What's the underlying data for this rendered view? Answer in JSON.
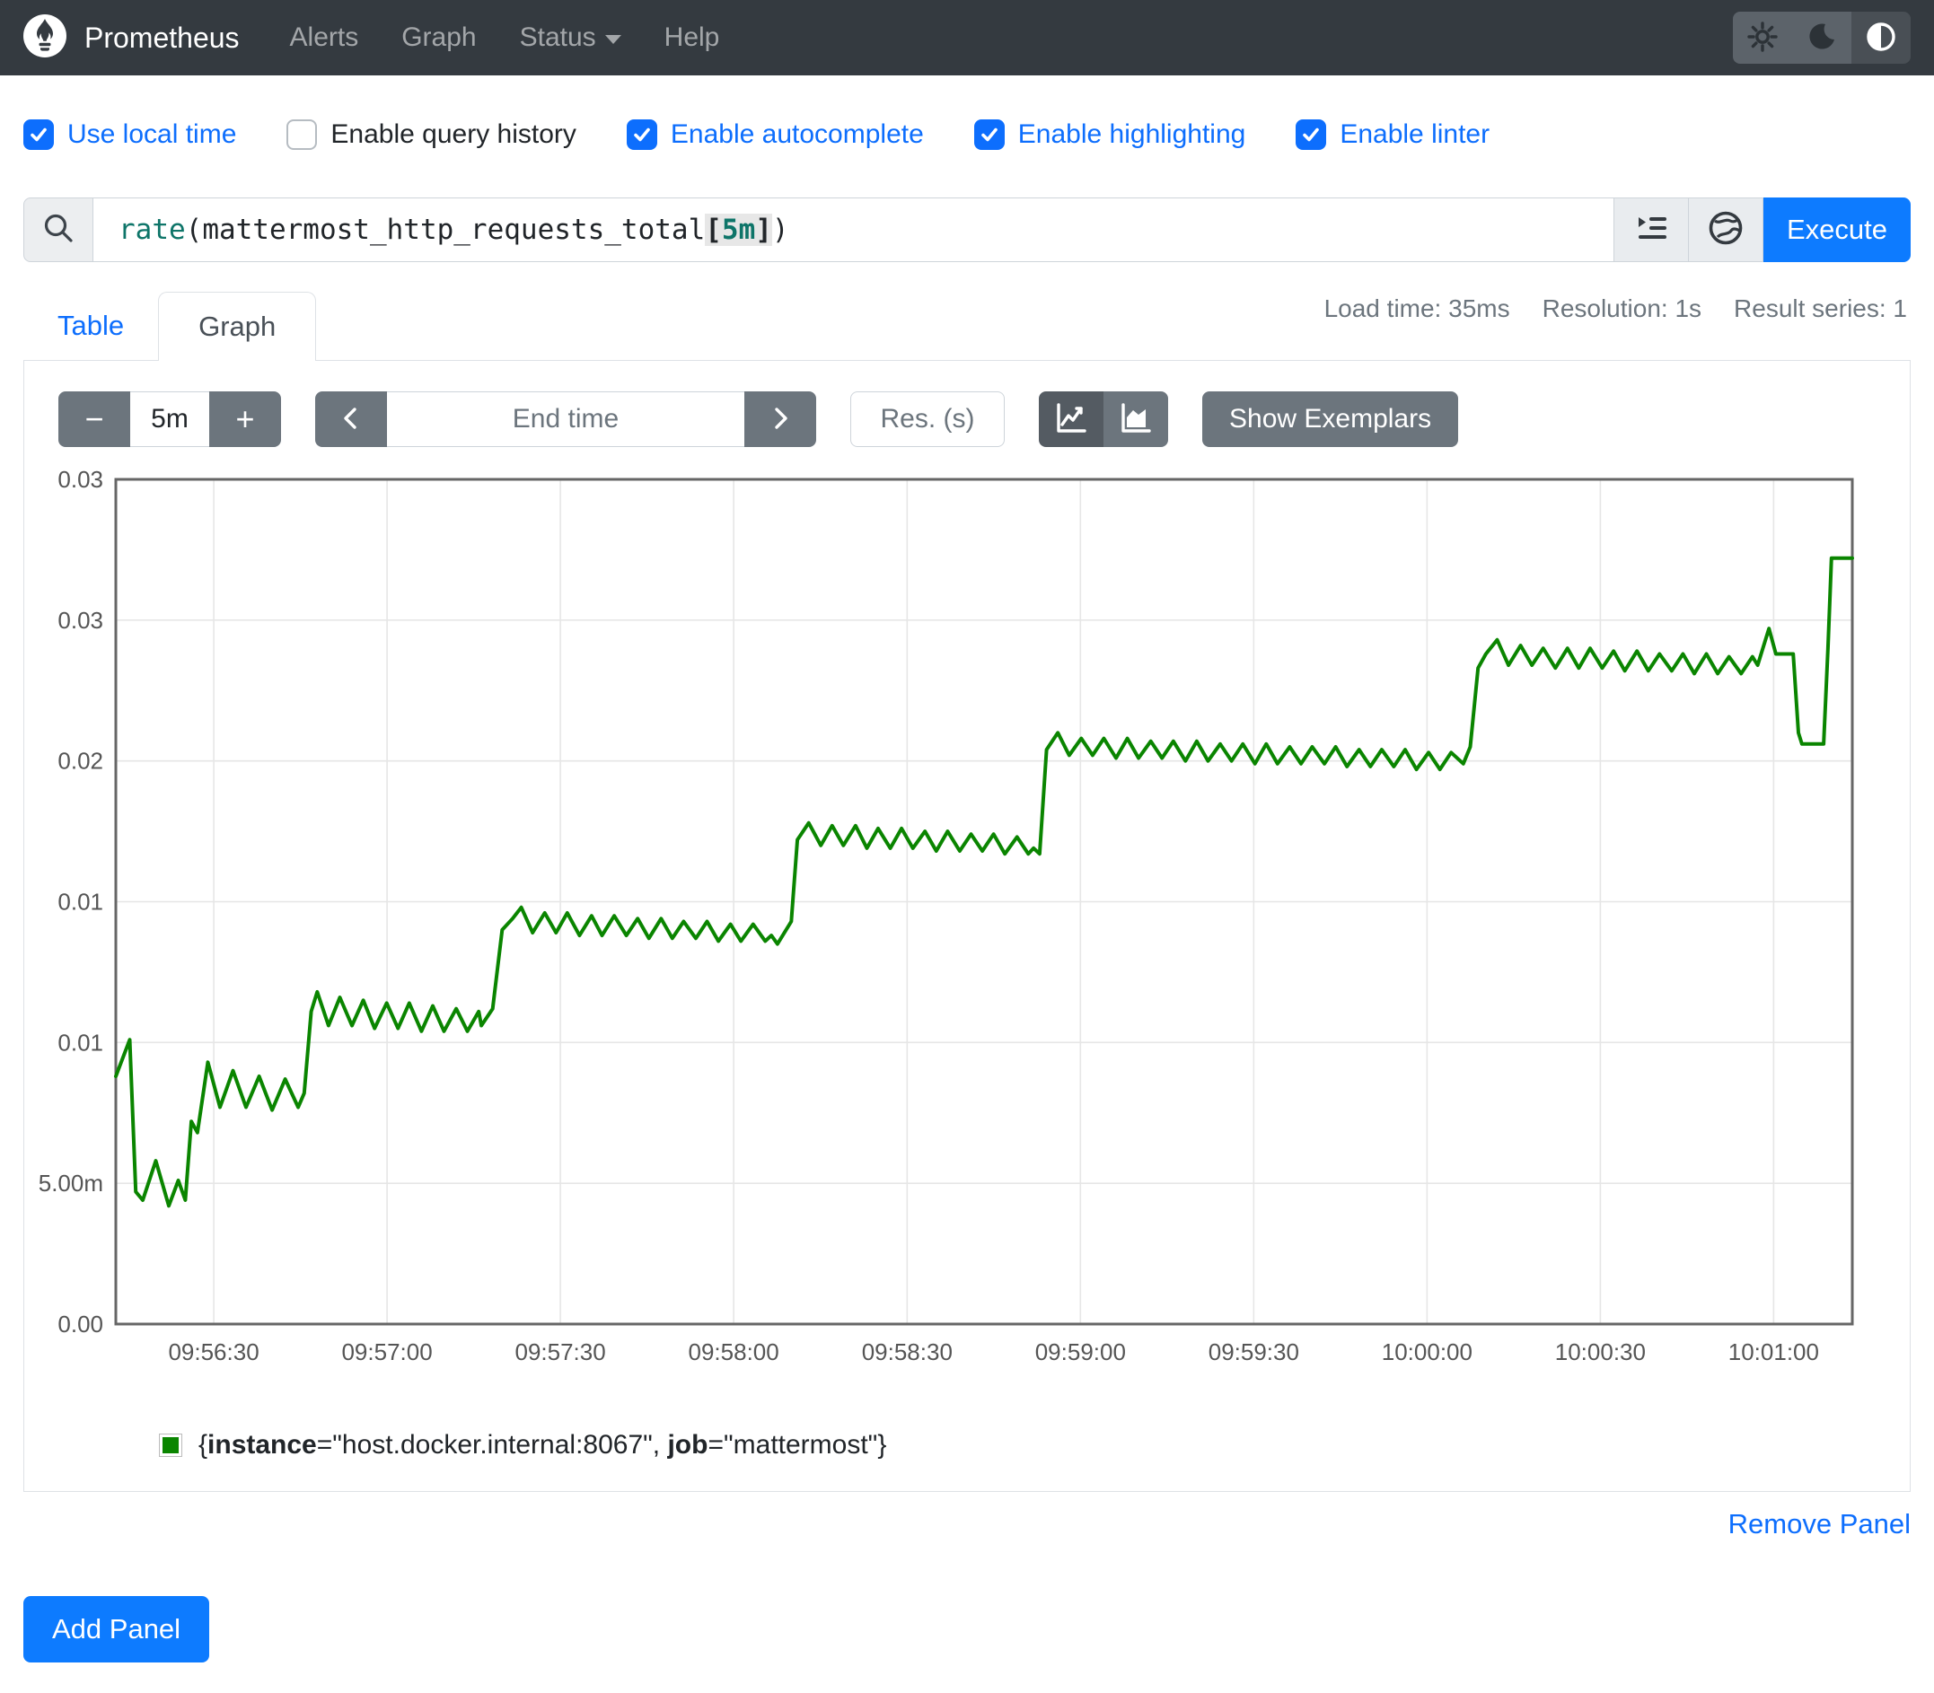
{
  "navbar": {
    "brand": "Prometheus",
    "links": [
      "Alerts",
      "Graph",
      "Status",
      "Help"
    ],
    "theme_icons": [
      "sun-icon",
      "moon-icon",
      "contrast-icon"
    ]
  },
  "options": [
    {
      "label": "Use local time",
      "checked": true
    },
    {
      "label": "Enable query history",
      "checked": false
    },
    {
      "label": "Enable autocomplete",
      "checked": true
    },
    {
      "label": "Enable highlighting",
      "checked": true
    },
    {
      "label": "Enable linter",
      "checked": true
    }
  ],
  "query_bar": {
    "expression_parts": [
      {
        "text": "rate",
        "color": "#0e7569"
      },
      {
        "text": "(mattermost_http_requests_total",
        "color": "#212529"
      },
      {
        "text": "[",
        "bg": true,
        "color": "#212529"
      },
      {
        "text": "5m",
        "bg": true,
        "color": "#0e7569"
      },
      {
        "text": "]",
        "bg": true,
        "color": "#212529"
      },
      {
        "text": ")",
        "color": "#212529"
      }
    ],
    "execute_label": "Execute"
  },
  "tabs": {
    "table": "Table",
    "graph": "Graph"
  },
  "stats": {
    "load_time": "Load time: 35ms",
    "resolution": "Resolution: 1s",
    "result_series": "Result series: 1"
  },
  "controls": {
    "minus": "−",
    "range_value": "5m",
    "plus": "+",
    "end_time_placeholder": "End time",
    "res_placeholder": "Res. (s)",
    "show_exemplars": "Show Exemplars"
  },
  "chart_data": {
    "type": "line",
    "ylim": [
      0,
      0.03
    ],
    "grid": true,
    "legend_position": "bottom",
    "y_ticks": [
      {
        "v": 0.0,
        "label": "0.00"
      },
      {
        "v": 0.005,
        "label": "5.00m"
      },
      {
        "v": 0.01,
        "label": "0.01"
      },
      {
        "v": 0.015,
        "label": "0.01"
      },
      {
        "v": 0.02,
        "label": "0.02"
      },
      {
        "v": 0.025,
        "label": "0.03"
      },
      {
        "v": 0.03,
        "label": "0.03"
      }
    ],
    "x_ticks": [
      {
        "f": 0.0564,
        "label": "09:56:30"
      },
      {
        "f": 0.1562,
        "label": "09:57:00"
      },
      {
        "f": 0.256,
        "label": "09:57:30"
      },
      {
        "f": 0.3558,
        "label": "09:58:00"
      },
      {
        "f": 0.4557,
        "label": "09:58:30"
      },
      {
        "f": 0.5555,
        "label": "09:59:00"
      },
      {
        "f": 0.6553,
        "label": "09:59:30"
      },
      {
        "f": 0.7551,
        "label": "10:00:00"
      },
      {
        "f": 0.8549,
        "label": "10:00:30"
      },
      {
        "f": 0.9547,
        "label": "10:01:00"
      }
    ],
    "series": [
      {
        "name": "{instance=\"host.docker.internal:8067\", job=\"mattermost\"}",
        "color": "#0a8500",
        "points": [
          [
            0.0,
            0.0088
          ],
          [
            0.008,
            0.0101
          ],
          [
            0.0115,
            0.0047
          ],
          [
            0.0155,
            0.0044
          ],
          [
            0.023,
            0.0058
          ],
          [
            0.0305,
            0.0042
          ],
          [
            0.036,
            0.0051
          ],
          [
            0.04,
            0.0044
          ],
          [
            0.0435,
            0.0072
          ],
          [
            0.047,
            0.0068
          ],
          [
            0.053,
            0.0093
          ],
          [
            0.06,
            0.0077
          ],
          [
            0.0675,
            0.009
          ],
          [
            0.075,
            0.0077
          ],
          [
            0.0825,
            0.0088
          ],
          [
            0.09,
            0.0076
          ],
          [
            0.0975,
            0.0087
          ],
          [
            0.105,
            0.0077
          ],
          [
            0.1085,
            0.0082
          ],
          [
            0.1125,
            0.0111
          ],
          [
            0.116,
            0.0118
          ],
          [
            0.1225,
            0.0106
          ],
          [
            0.129,
            0.0116
          ],
          [
            0.136,
            0.0106
          ],
          [
            0.1425,
            0.0115
          ],
          [
            0.149,
            0.0105
          ],
          [
            0.156,
            0.0114
          ],
          [
            0.1625,
            0.0105
          ],
          [
            0.169,
            0.0114
          ],
          [
            0.176,
            0.0104
          ],
          [
            0.1825,
            0.0113
          ],
          [
            0.189,
            0.0104
          ],
          [
            0.196,
            0.0112
          ],
          [
            0.2025,
            0.0104
          ],
          [
            0.209,
            0.0111
          ],
          [
            0.2105,
            0.0106
          ],
          [
            0.217,
            0.0112
          ],
          [
            0.2225,
            0.014
          ],
          [
            0.2285,
            0.0144
          ],
          [
            0.2335,
            0.0148
          ],
          [
            0.24,
            0.0139
          ],
          [
            0.247,
            0.0146
          ],
          [
            0.2535,
            0.0139
          ],
          [
            0.26,
            0.0146
          ],
          [
            0.267,
            0.0138
          ],
          [
            0.274,
            0.0145
          ],
          [
            0.28,
            0.0138
          ],
          [
            0.287,
            0.0145
          ],
          [
            0.294,
            0.0138
          ],
          [
            0.3005,
            0.0144
          ],
          [
            0.307,
            0.0137
          ],
          [
            0.314,
            0.0144
          ],
          [
            0.3205,
            0.0137
          ],
          [
            0.327,
            0.0143
          ],
          [
            0.334,
            0.0137
          ],
          [
            0.3405,
            0.0143
          ],
          [
            0.347,
            0.0136
          ],
          [
            0.354,
            0.0142
          ],
          [
            0.36,
            0.0136
          ],
          [
            0.367,
            0.0142
          ],
          [
            0.374,
            0.0136
          ],
          [
            0.3775,
            0.0138
          ],
          [
            0.381,
            0.0135
          ],
          [
            0.389,
            0.0143
          ],
          [
            0.3925,
            0.0172
          ],
          [
            0.399,
            0.0178
          ],
          [
            0.406,
            0.017
          ],
          [
            0.4125,
            0.0177
          ],
          [
            0.419,
            0.017
          ],
          [
            0.426,
            0.0177
          ],
          [
            0.4325,
            0.0169
          ],
          [
            0.439,
            0.0176
          ],
          [
            0.446,
            0.0169
          ],
          [
            0.4525,
            0.0176
          ],
          [
            0.459,
            0.0169
          ],
          [
            0.466,
            0.0175
          ],
          [
            0.4725,
            0.0168
          ],
          [
            0.479,
            0.0175
          ],
          [
            0.486,
            0.0168
          ],
          [
            0.4925,
            0.0174
          ],
          [
            0.499,
            0.0168
          ],
          [
            0.5055,
            0.0174
          ],
          [
            0.512,
            0.0167
          ],
          [
            0.519,
            0.0173
          ],
          [
            0.5255,
            0.0167
          ],
          [
            0.5285,
            0.0169
          ],
          [
            0.532,
            0.0167
          ],
          [
            0.536,
            0.0204
          ],
          [
            0.5425,
            0.021
          ],
          [
            0.549,
            0.0202
          ],
          [
            0.556,
            0.0208
          ],
          [
            0.5625,
            0.0202
          ],
          [
            0.569,
            0.0208
          ],
          [
            0.576,
            0.0201
          ],
          [
            0.5825,
            0.0208
          ],
          [
            0.589,
            0.0201
          ],
          [
            0.596,
            0.0207
          ],
          [
            0.6025,
            0.0201
          ],
          [
            0.609,
            0.0207
          ],
          [
            0.616,
            0.02
          ],
          [
            0.6225,
            0.0207
          ],
          [
            0.629,
            0.02
          ],
          [
            0.636,
            0.0206
          ],
          [
            0.6425,
            0.02
          ],
          [
            0.649,
            0.0206
          ],
          [
            0.656,
            0.0199
          ],
          [
            0.6625,
            0.0206
          ],
          [
            0.669,
            0.0199
          ],
          [
            0.676,
            0.0205
          ],
          [
            0.6825,
            0.0199
          ],
          [
            0.689,
            0.0205
          ],
          [
            0.696,
            0.0199
          ],
          [
            0.7025,
            0.0205
          ],
          [
            0.709,
            0.0198
          ],
          [
            0.716,
            0.0204
          ],
          [
            0.7225,
            0.0198
          ],
          [
            0.729,
            0.0204
          ],
          [
            0.736,
            0.0198
          ],
          [
            0.7425,
            0.0204
          ],
          [
            0.749,
            0.0197
          ],
          [
            0.756,
            0.0203
          ],
          [
            0.7625,
            0.0197
          ],
          [
            0.769,
            0.0203
          ],
          [
            0.776,
            0.0199
          ],
          [
            0.78,
            0.0205
          ],
          [
            0.7845,
            0.0233
          ],
          [
            0.789,
            0.0238
          ],
          [
            0.7955,
            0.0243
          ],
          [
            0.802,
            0.0234
          ],
          [
            0.809,
            0.0241
          ],
          [
            0.8155,
            0.0234
          ],
          [
            0.822,
            0.024
          ],
          [
            0.829,
            0.0233
          ],
          [
            0.836,
            0.024
          ],
          [
            0.8425,
            0.0233
          ],
          [
            0.849,
            0.024
          ],
          [
            0.856,
            0.0233
          ],
          [
            0.8625,
            0.0239
          ],
          [
            0.869,
            0.0232
          ],
          [
            0.876,
            0.0239
          ],
          [
            0.8825,
            0.0232
          ],
          [
            0.889,
            0.0238
          ],
          [
            0.896,
            0.0232
          ],
          [
            0.9025,
            0.0238
          ],
          [
            0.909,
            0.0231
          ],
          [
            0.916,
            0.0238
          ],
          [
            0.9225,
            0.0231
          ],
          [
            0.929,
            0.0237
          ],
          [
            0.936,
            0.0231
          ],
          [
            0.9425,
            0.0237
          ],
          [
            0.9455,
            0.0234
          ],
          [
            0.952,
            0.0247
          ],
          [
            0.956,
            0.0238
          ],
          [
            0.966,
            0.0238
          ],
          [
            0.969,
            0.021
          ],
          [
            0.971,
            0.0206
          ],
          [
            0.9835,
            0.0206
          ],
          [
            0.986,
            0.024
          ],
          [
            0.988,
            0.0272
          ],
          [
            1.0,
            0.0272
          ]
        ]
      }
    ]
  },
  "legend": {
    "swatch_color": "#0a8500",
    "parts": [
      {
        "text": "{"
      },
      {
        "text": "instance",
        "bold": true
      },
      {
        "text": "=\"host.docker.internal:8067\", "
      },
      {
        "text": "job",
        "bold": true
      },
      {
        "text": "=\"mattermost\"}"
      }
    ]
  },
  "footer": {
    "remove_panel": "Remove Panel",
    "add_panel": "Add Panel"
  },
  "colors": {
    "navbar_bg": "#343a40",
    "accent_blue": "#0d7bff",
    "link_blue": "#0d6efd",
    "button_gray": "#6c757d",
    "button_gray_active": "#545b62",
    "line_green": "#0a8500",
    "grid_gray": "#e6e6e6",
    "plot_border": "#666666"
  }
}
